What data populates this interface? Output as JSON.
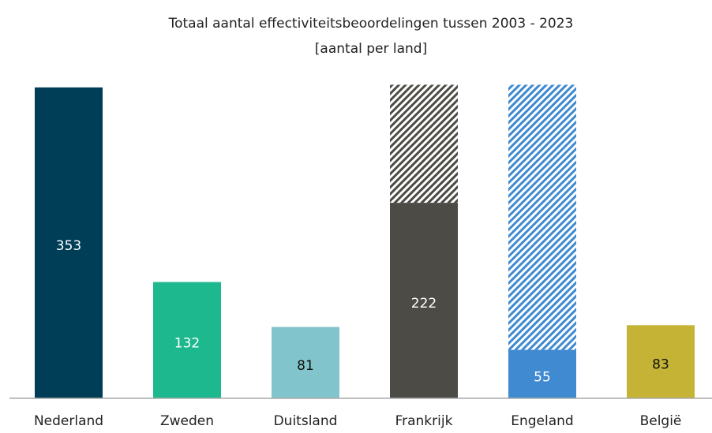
{
  "chart_data": {
    "type": "bar",
    "title": "Totaal aantal effectiviteitsbeoordelingen tussen 2003 - 2023",
    "subtitle": "[aantal per land]",
    "categories": [
      "Nederland",
      "Zweden",
      "Duitsland",
      "Frankrijk",
      "Engeland",
      "België"
    ],
    "series": [
      {
        "colors": [
          "#003d57",
          "#1db88e",
          "#82c4cc",
          "#4d4b46",
          "#3f8ad0",
          "#c4b335"
        ],
        "values": [
          353,
          132,
          81,
          222,
          55,
          83
        ],
        "pattern": "solid"
      },
      {
        "colors": [
          null,
          null,
          null,
          "#4d4b46",
          "#3f8ad0",
          null
        ],
        "values": [
          null,
          null,
          null,
          134,
          301,
          null
        ],
        "pattern": "hatch"
      }
    ],
    "ylim": [
      0,
      360
    ]
  }
}
